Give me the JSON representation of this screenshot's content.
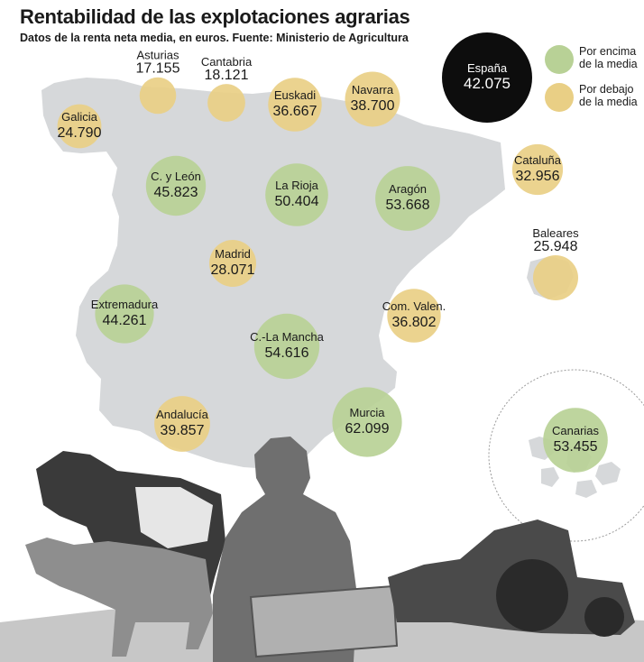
{
  "title": "Rentabilidad de las explotaciones agrarias",
  "subtitle": "Datos de la renta neta media, en euros. Fuente: Ministerio de Agricultura",
  "colors": {
    "above": "#b8d196",
    "below": "#e9cf85",
    "total": "#0d0d0d",
    "map": "#d6d8da"
  },
  "legend": {
    "above": "Por encima de la media",
    "below": "Por debajo de la media"
  },
  "chart_data": {
    "type": "bubble-map",
    "unit": "euros",
    "reference": {
      "label": "España",
      "value": "42.075",
      "number": 42075
    },
    "regions": [
      {
        "name": "Galicia",
        "value": "24.790",
        "number": 24790,
        "category": "below"
      },
      {
        "name": "Asturias",
        "value": "17.155",
        "number": 17155,
        "category": "below"
      },
      {
        "name": "Cantabria",
        "value": "18.121",
        "number": 18121,
        "category": "below"
      },
      {
        "name": "Euskadi",
        "value": "36.667",
        "number": 36667,
        "category": "below"
      },
      {
        "name": "Navarra",
        "value": "38.700",
        "number": 38700,
        "category": "below"
      },
      {
        "name": "Cataluña",
        "value": "32.956",
        "number": 32956,
        "category": "below"
      },
      {
        "name": "C. y León",
        "value": "45.823",
        "number": 45823,
        "category": "above"
      },
      {
        "name": "La Rioja",
        "value": "50.404",
        "number": 50404,
        "category": "above"
      },
      {
        "name": "Aragón",
        "value": "53.668",
        "number": 53668,
        "category": "above"
      },
      {
        "name": "Madrid",
        "value": "28.071",
        "number": 28071,
        "category": "below"
      },
      {
        "name": "Baleares",
        "value": "25.948",
        "number": 25948,
        "category": "below"
      },
      {
        "name": "Extremadura",
        "value": "44.261",
        "number": 44261,
        "category": "above"
      },
      {
        "name": "C.-La Mancha",
        "value": "54.616",
        "number": 54616,
        "category": "above"
      },
      {
        "name": "Com. Valen.",
        "value": "36.802",
        "number": 36802,
        "category": "below"
      },
      {
        "name": "Andalucía",
        "value": "39.857",
        "number": 39857,
        "category": "below"
      },
      {
        "name": "Murcia",
        "value": "62.099",
        "number": 62099,
        "category": "above"
      },
      {
        "name": "Canarias",
        "value": "53.455",
        "number": 53455,
        "category": "above"
      }
    ]
  }
}
